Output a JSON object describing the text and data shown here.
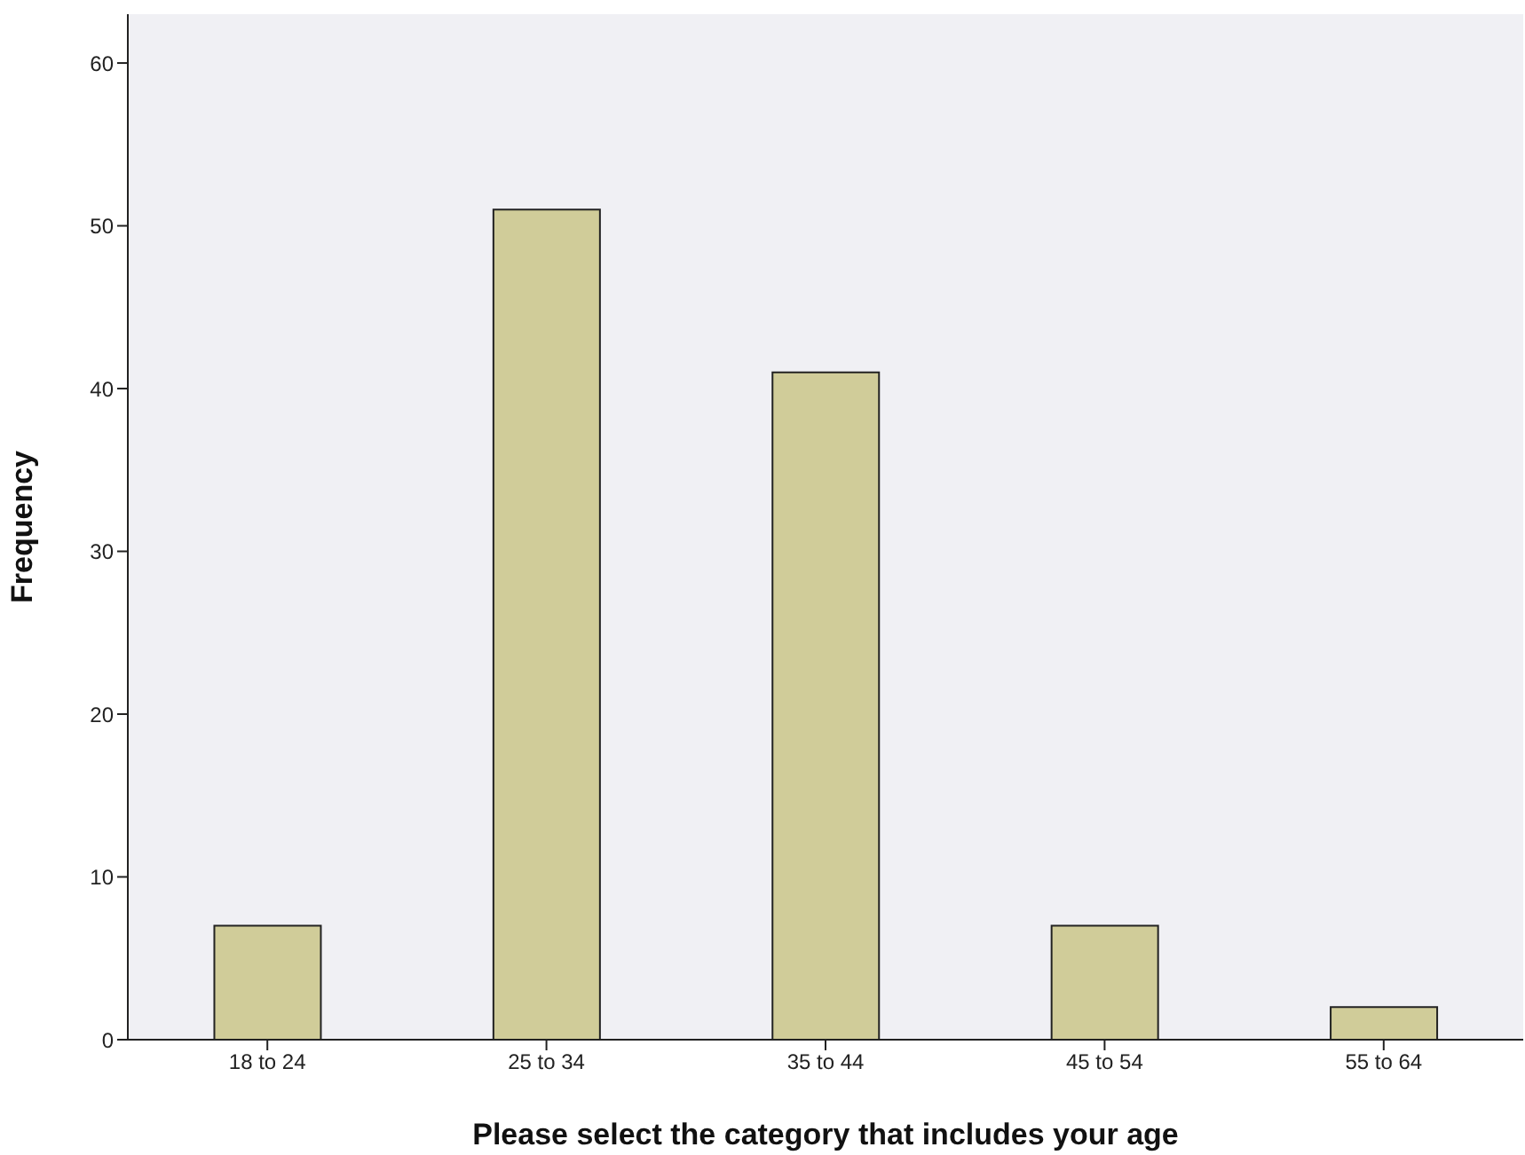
{
  "chart_data": {
    "type": "bar",
    "xlabel": "Please select the category that includes your age",
    "ylabel": "Frequency",
    "categories": [
      "18 to 24",
      "25 to 34",
      "35 to 44",
      "45 to 54",
      "55 to 64"
    ],
    "values": [
      7,
      51,
      41,
      7,
      2
    ],
    "color": "#d0cc99",
    "ylim": [
      0,
      63
    ],
    "yticks": [
      0,
      10,
      20,
      30,
      40,
      50,
      60
    ]
  }
}
